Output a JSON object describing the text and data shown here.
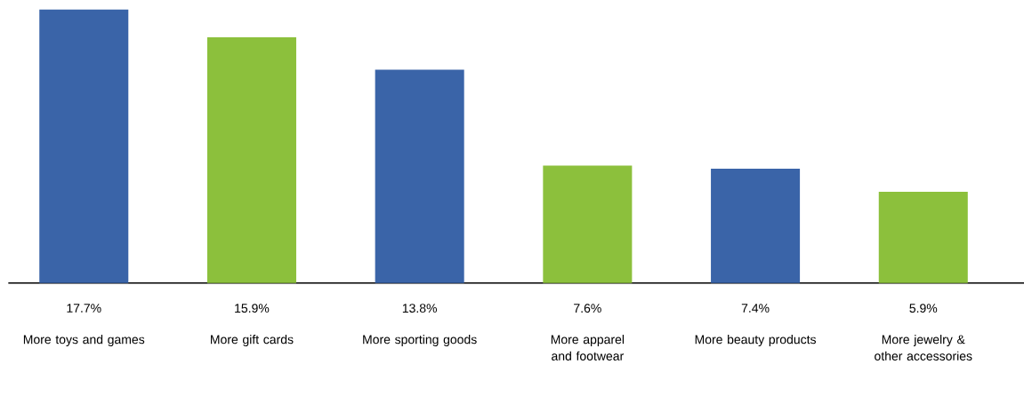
{
  "chart_data": {
    "type": "bar",
    "categories": [
      "More toys and games",
      "More gift cards",
      "More sporting goods",
      "More apparel and footwear",
      "More beauty products",
      "More jewelry & other accessories"
    ],
    "values": [
      17.7,
      15.9,
      13.8,
      7.6,
      7.4,
      5.9
    ],
    "value_labels": [
      "17.7%",
      "15.9%",
      "13.8%",
      "7.6%",
      "7.4%",
      "5.9%"
    ],
    "colors": [
      "#3a64a8",
      "#8cc03c",
      "#3a64a8",
      "#8cc03c",
      "#3a64a8",
      "#8cc03c"
    ]
  }
}
